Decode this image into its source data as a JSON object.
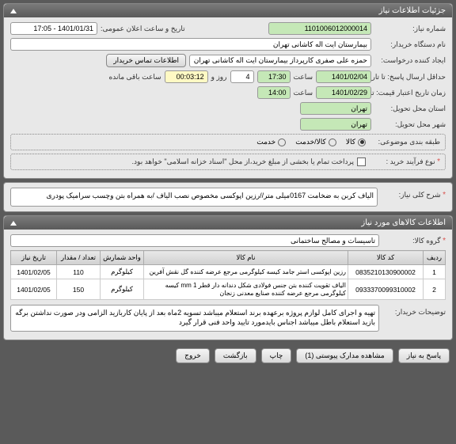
{
  "panel1": {
    "title": "جزئیات اطلاعات نیاز",
    "rows": {
      "req_no_lbl": "شماره نیاز:",
      "req_no": "1101006012000014",
      "announce_lbl": "تاریخ و ساعت اعلان عمومی:",
      "announce": "1401/01/31 - 17:05",
      "buyer_lbl": "نام دستگاه خریدار:",
      "buyer": "بیمارستان ایت اله کاشانی تهران",
      "creator_lbl": "ایجاد کننده درخواست:",
      "creator": "حمزه علی صفری کارپرداز بیمارستان ایت اله کاشانی تهران",
      "contact_btn": "اطلاعات تماس خریدار",
      "deadline_lbl": "حداقل ارسال پاسخ: تا تاریخ:",
      "deadline_date": "1401/02/04",
      "deadline_time_lbl": "ساعت",
      "deadline_time": "17:30",
      "days": "4",
      "days_lbl": "روز و",
      "remain": "00:03:12",
      "remain_lbl": "ساعت باقی مانده",
      "valid_lbl": "زمان تاریخ اعتبار قیمت: تا تاریخ:",
      "valid_date": "1401/02/29",
      "valid_time_lbl": "ساعت",
      "valid_time": "14:00",
      "province_lbl": "استان محل تحویل:",
      "province": "تهران",
      "city_lbl": "شهر محل تحویل:",
      "city": "تهران",
      "class_lbl": "طبقه بندی موضوعی:",
      "class_opts": [
        "کالا",
        "کالا/خدمت",
        "خدمت"
      ],
      "process_lbl": "نوع فرآیند خرید :",
      "process_chk": "پرداخت تمام یا بخشی از مبلغ خرید،از محل \"اسناد خزانه اسلامی\" خواهد بود."
    }
  },
  "panel2": {
    "title": "شرح کلی نیاز:",
    "text": "الیاف کربن به ضخامت 0167میلی متر//رزین اپوکسی مخصوص نصب الیاف /به همراه بتن وچسب سرامیک پودری"
  },
  "panel3": {
    "title": "اطلاعات کالاهای مورد نیاز",
    "group_lbl": "گروه کالا:",
    "group": "تاسیسات و مصالح ساختمانی",
    "columns": [
      "ردیف",
      "کد کالا",
      "نام کالا",
      "واحد شمارش",
      "تعداد / مقدار",
      "تاریخ نیاز"
    ],
    "rows": [
      {
        "n": "1",
        "code": "0835210130900002",
        "name": "رزین اپوکسی استر جامد کیسه کیلوگرمی مرجع عرضه کننده گل نقش آفرین",
        "unit": "کیلوگرم",
        "qty": "110",
        "date": "1401/02/05"
      },
      {
        "n": "2",
        "code": "0933370099310002",
        "name": "الیاف تقویت کننده بتن جنس فولادی شکل دندانه دار قطر 1 mm کیسه کیلوگرمی مرجع عرضه کننده صنایع معدنی زنجان",
        "unit": "کیلوگرم",
        "qty": "150",
        "date": "1401/02/05"
      }
    ],
    "buyer_notes_lbl": "توضیحات خریدار:",
    "buyer_notes": "تهیه و اجرای  کامل لوازم  پروژه برعهده برند استعلام میباشد تسویه 2ماه بعد از پایان کاربازید الزامی ودر صورت نداشتن برگه بازید استعلام باطل میباشد اجناس بایدمورد  تایید واحد فنی قرار گیرد"
  },
  "buttons": {
    "respond": "پاسخ به نیاز",
    "attach": "مشاهده مدارک پیوستی (1)",
    "print": "چاپ",
    "back": "بازگشت",
    "exit": "خروج"
  }
}
